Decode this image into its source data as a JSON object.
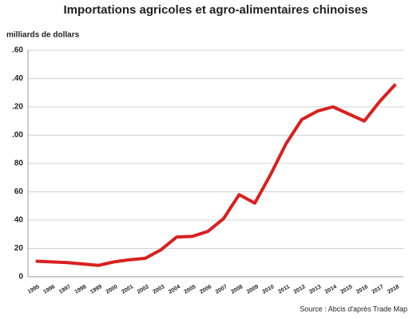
{
  "chart_data": {
    "type": "line",
    "title": "Importations agricoles et agro-alimentaires chinoises",
    "y_label": "milliards de dollars",
    "source": "Source : Abcis d'après Trade Map",
    "categories": [
      "1995",
      "1996",
      "1997",
      "1998",
      "1999",
      "2000",
      "2001",
      "2002",
      "2003",
      "2004",
      "2005",
      "2006",
      "2007",
      "2008",
      "2009",
      "2010",
      "2011",
      "2012",
      "2013",
      "2014",
      "2015",
      "2016",
      "2017",
      "2018"
    ],
    "series": [
      {
        "name": "Importations",
        "color": "#d9201f",
        "values": [
          11,
          10.5,
          10,
          9,
          8,
          10.5,
          12,
          13,
          19,
          28,
          28.5,
          32,
          41,
          58,
          52,
          72,
          94,
          111,
          117,
          120,
          115,
          110,
          124,
          136
        ]
      }
    ],
    "ylim": [
      0,
      160
    ],
    "yticks": [
      0,
      20,
      40,
      60,
      80,
      {
        "value": 100,
        "label": ".00"
      },
      {
        "value": 120,
        "label": ".20"
      },
      {
        "value": 140,
        "label": ".40"
      },
      {
        "value": 160,
        "label": ".60"
      }
    ],
    "grid": true
  }
}
